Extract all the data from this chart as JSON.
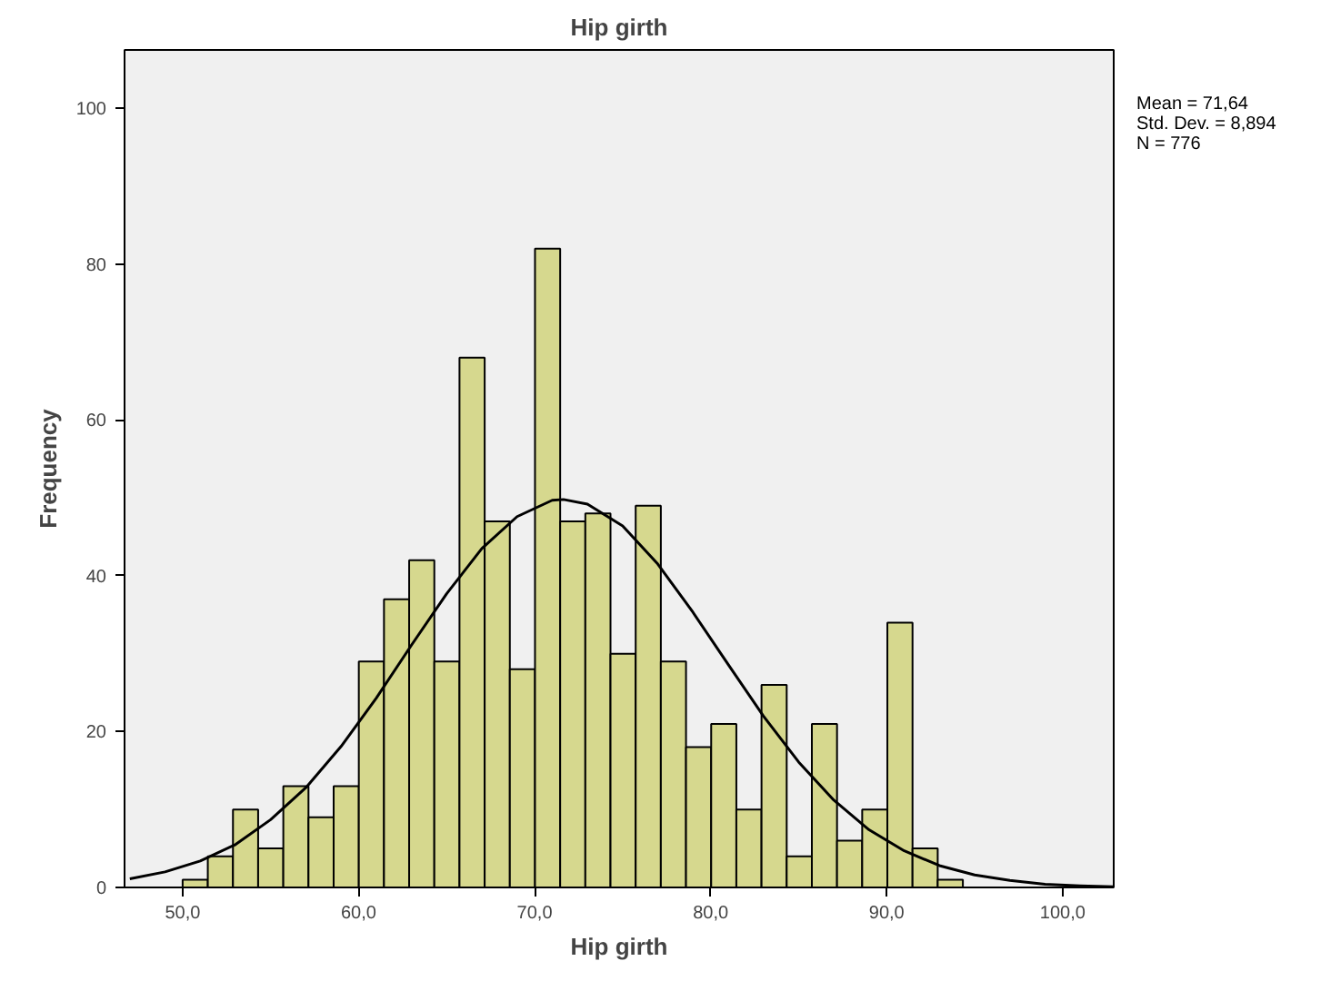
{
  "chart_data": {
    "type": "histogram",
    "title": "Hip girth",
    "xlabel": "Hip girth",
    "ylabel": "Frequency",
    "bins": [
      50.0,
      51.43,
      52.86,
      54.29,
      55.72,
      57.15,
      58.58,
      60.01,
      61.44,
      62.87,
      64.3,
      65.73,
      67.16,
      68.59,
      70.02,
      71.45,
      72.88,
      74.31,
      75.74,
      77.17,
      78.6,
      80.03,
      81.46,
      82.89,
      84.32,
      85.75,
      87.18,
      88.61,
      90.04,
      91.47,
      92.9,
      94.33
    ],
    "values": [
      1,
      4,
      10,
      5,
      13,
      9,
      13,
      29,
      37,
      42,
      29,
      68,
      47,
      28,
      82,
      47,
      48,
      30,
      49,
      29,
      18,
      21,
      10,
      26,
      4,
      21,
      6,
      10,
      34,
      5,
      1
    ],
    "color": "#d6d88e",
    "series": [
      {
        "type": "line",
        "color": "#000000",
        "x": [
          47,
          49,
          51,
          53,
          55,
          57,
          59,
          61,
          63,
          65,
          67,
          69,
          71,
          71.64,
          73,
          75,
          77,
          79,
          81,
          83,
          85,
          87,
          89,
          91,
          93,
          95,
          97,
          99,
          101,
          102.9
        ],
        "values": [
          1.1,
          2,
          3.4,
          5.5,
          8.7,
          12.8,
          18.1,
          24.3,
          31.1,
          37.7,
          43.5,
          47.6,
          49.7,
          49.8,
          49.2,
          46.4,
          41.5,
          35.3,
          28.6,
          22,
          16.1,
          11.2,
          7.4,
          4.7,
          2.8,
          1.6,
          0.9,
          0.4,
          0.2,
          0.1
        ]
      }
    ],
    "xlim": [
      46.7,
      102.9
    ],
    "ylim": [
      0,
      107.5
    ],
    "xticks": [
      {
        "value": 50,
        "label": "50,0"
      },
      {
        "value": 60,
        "label": "60,0"
      },
      {
        "value": 70,
        "label": "70,0"
      },
      {
        "value": 80,
        "label": "80,0"
      },
      {
        "value": 90,
        "label": "90,0"
      },
      {
        "value": 100,
        "label": "100,0"
      }
    ],
    "yticks": [
      0,
      20,
      40,
      60,
      80,
      100
    ],
    "grid": false,
    "annotations": [
      "Mean = 71,64",
      "Std. Dev. = 8,894",
      "N = 776"
    ]
  }
}
